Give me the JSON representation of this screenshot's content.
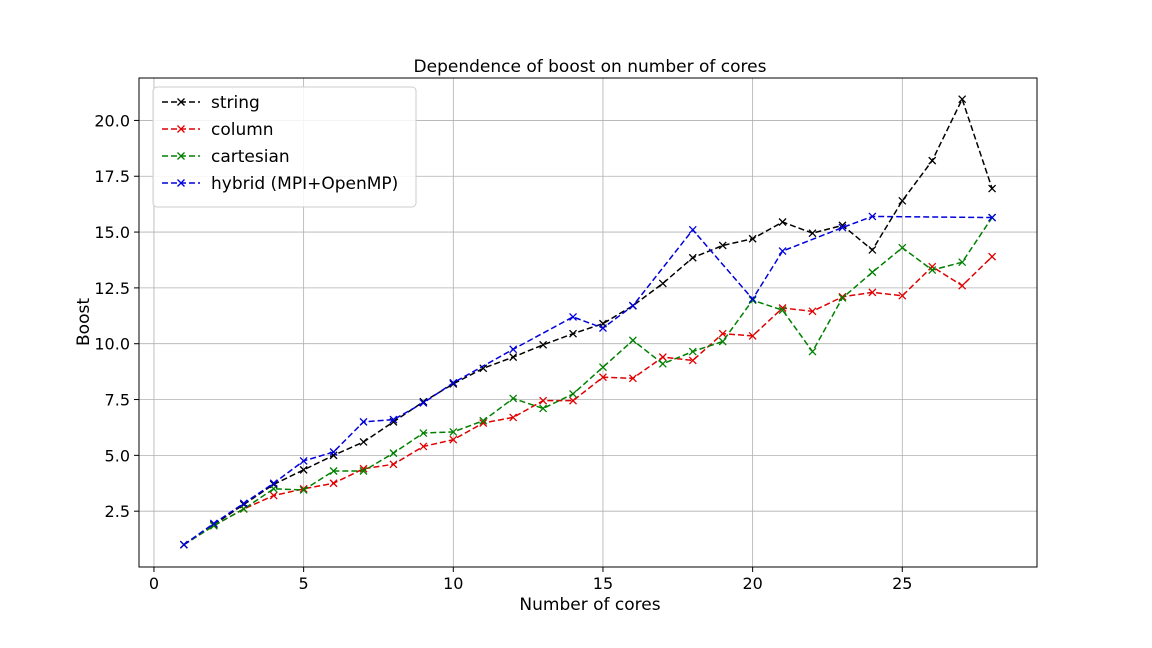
{
  "chart_data": {
    "type": "line",
    "title": "Dependence of boost on number of cores",
    "xlabel": "Number of cores",
    "ylabel": "Boost",
    "xlim": [
      -0.5,
      29.5
    ],
    "ylim": [
      0.0,
      21.9
    ],
    "xticks": [
      0,
      5,
      10,
      15,
      20,
      25
    ],
    "yticks": [
      2.5,
      5.0,
      7.5,
      10.0,
      12.5,
      15.0,
      17.5,
      20.0
    ],
    "xtick_labels": [
      "0",
      "5",
      "10",
      "15",
      "20",
      "25"
    ],
    "ytick_labels": [
      "2.5",
      "5.0",
      "7.5",
      "10.0",
      "12.5",
      "15.0",
      "17.5",
      "20.0"
    ],
    "grid": true,
    "legend_position": "upper-left",
    "x": [
      1,
      2,
      3,
      4,
      5,
      6,
      7,
      8,
      9,
      10,
      11,
      12,
      13,
      14,
      15,
      16,
      17,
      18,
      19,
      20,
      21,
      22,
      23,
      24,
      25,
      26,
      27,
      28
    ],
    "series": [
      {
        "name": "string",
        "color": "#000000",
        "marker": "x",
        "line_style": "dashed",
        "values": [
          1.0,
          1.9,
          2.8,
          3.7,
          4.35,
          5.0,
          5.6,
          6.5,
          7.4,
          8.2,
          8.9,
          9.4,
          9.95,
          10.45,
          10.9,
          11.7,
          12.7,
          13.85,
          14.4,
          14.7,
          15.45,
          14.95,
          15.3,
          14.2,
          16.4,
          18.2,
          20.95,
          16.95
        ]
      },
      {
        "name": "column",
        "color": "#e00000",
        "marker": "x",
        "line_style": "dashed",
        "values": [
          1.0,
          1.85,
          2.6,
          3.2,
          3.5,
          3.75,
          4.4,
          4.6,
          5.4,
          5.7,
          6.45,
          6.7,
          7.45,
          7.45,
          8.5,
          8.45,
          9.4,
          9.25,
          10.45,
          10.35,
          11.6,
          11.45,
          12.1,
          12.3,
          12.15,
          13.45,
          12.6,
          13.9
        ]
      },
      {
        "name": "cartesian",
        "color": "#008000",
        "marker": "x",
        "line_style": "dashed",
        "values": [
          1.0,
          1.85,
          2.6,
          3.5,
          3.45,
          4.3,
          4.3,
          5.1,
          6.0,
          6.05,
          6.55,
          7.55,
          7.1,
          7.75,
          8.95,
          10.15,
          9.1,
          9.65,
          10.1,
          11.95,
          11.5,
          9.65,
          12.05,
          13.2,
          14.3,
          13.3,
          13.65,
          15.65
        ]
      },
      {
        "name": "hybrid (MPI+OpenMP)",
        "color": "#0000dd",
        "marker": "x",
        "line_style": "dashed",
        "values": [
          1.0,
          1.95,
          2.85,
          3.75,
          4.75,
          5.15,
          6.5,
          6.6,
          7.35,
          8.25,
          null,
          9.75,
          null,
          11.2,
          10.7,
          11.7,
          null,
          15.1,
          null,
          12.0,
          14.15,
          null,
          15.2,
          15.7,
          null,
          null,
          null,
          15.65
        ]
      }
    ]
  }
}
